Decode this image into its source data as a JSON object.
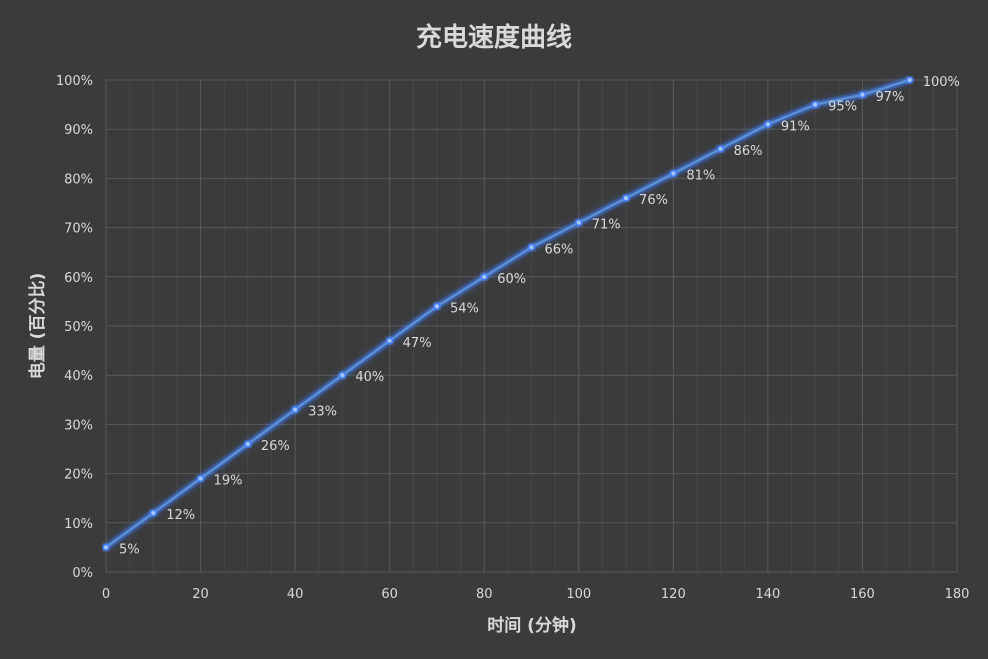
{
  "chart_data": {
    "type": "line",
    "title": "充电速度曲线",
    "xlabel": "时间 (分钟)",
    "ylabel": "电量 (百分比)",
    "x": [
      0,
      10,
      20,
      30,
      40,
      50,
      60,
      70,
      80,
      90,
      100,
      110,
      120,
      130,
      140,
      150,
      160,
      170
    ],
    "series": [
      {
        "values": [
          5,
          12,
          19,
          26,
          33,
          40,
          47,
          54,
          60,
          66,
          71,
          76,
          81,
          86,
          91,
          95,
          97,
          100
        ],
        "labels": [
          "5%",
          "12%",
          "19%",
          "26%",
          "33%",
          "40%",
          "47%",
          "54%",
          "60%",
          "66%",
          "71%",
          "76%",
          "81%",
          "86%",
          "91%",
          "95%",
          "97%",
          "100%"
        ]
      }
    ],
    "xlim": [
      0,
      180
    ],
    "ylim": [
      0,
      100
    ],
    "xticks": [
      "0",
      "20",
      "40",
      "60",
      "80",
      "100",
      "120",
      "140",
      "160",
      "180"
    ],
    "yticks": [
      "0%",
      "10%",
      "20%",
      "30%",
      "40%",
      "50%",
      "60%",
      "70%",
      "80%",
      "90%",
      "100%"
    ],
    "grid": true,
    "minor_x_grid": true,
    "legend": "none",
    "colors": {
      "background": "#3b3b3b",
      "line": "#5b8fd6",
      "glow": "#3d7cff",
      "marker": "#a9c8f5",
      "major_grid": "#5a5a5a",
      "minor_grid": "#474747",
      "text": "#d9d9d9"
    }
  }
}
